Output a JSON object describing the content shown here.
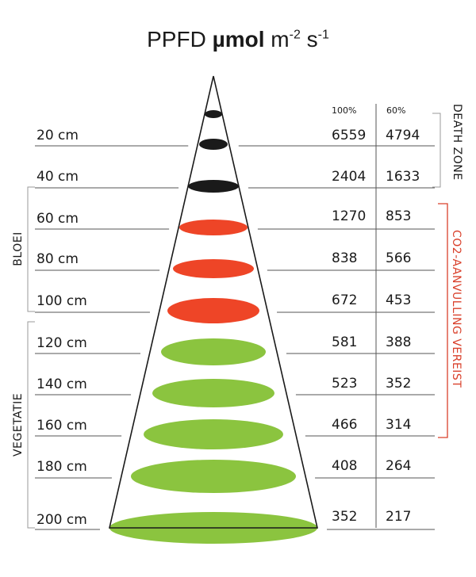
{
  "title": {
    "prefix": "PPFD",
    "unit_bold": "µmol",
    "m": "m",
    "m_exp": "-2",
    "s": "s",
    "s_exp": "-1"
  },
  "columns": {
    "full": "100%",
    "reduced": "60%"
  },
  "zones": {
    "death": "DEATH ZONE",
    "co2": "CO2-AANVULLING VEREIST",
    "bloei": "BLOEI",
    "vegetatie": "VEGETATIE"
  },
  "colors": {
    "death": "#1a1a1a",
    "bloei": "#ee4527",
    "vegetatie": "#8bc43f",
    "co2_bracket": "#d9402b",
    "bracket": "#999999"
  },
  "rows": [
    {
      "distance": "20 cm",
      "full": "6559",
      "reduced": "4794",
      "zone": "death"
    },
    {
      "distance": "40 cm",
      "full": "2404",
      "reduced": "1633",
      "zone": "death"
    },
    {
      "distance": "60 cm",
      "full": "1270",
      "reduced": "853",
      "zone": "bloei"
    },
    {
      "distance": "80 cm",
      "full": "838",
      "reduced": "566",
      "zone": "bloei"
    },
    {
      "distance": "100 cm",
      "full": "672",
      "reduced": "453",
      "zone": "bloei"
    },
    {
      "distance": "120 cm",
      "full": "581",
      "reduced": "388",
      "zone": "vegetatie"
    },
    {
      "distance": "140 cm",
      "full": "523",
      "reduced": "352",
      "zone": "vegetatie"
    },
    {
      "distance": "160 cm",
      "full": "466",
      "reduced": "314",
      "zone": "vegetatie"
    },
    {
      "distance": "180 cm",
      "full": "408",
      "reduced": "264",
      "zone": "vegetatie"
    },
    {
      "distance": "200 cm",
      "full": "352",
      "reduced": "217",
      "zone": "vegetatie"
    }
  ]
}
